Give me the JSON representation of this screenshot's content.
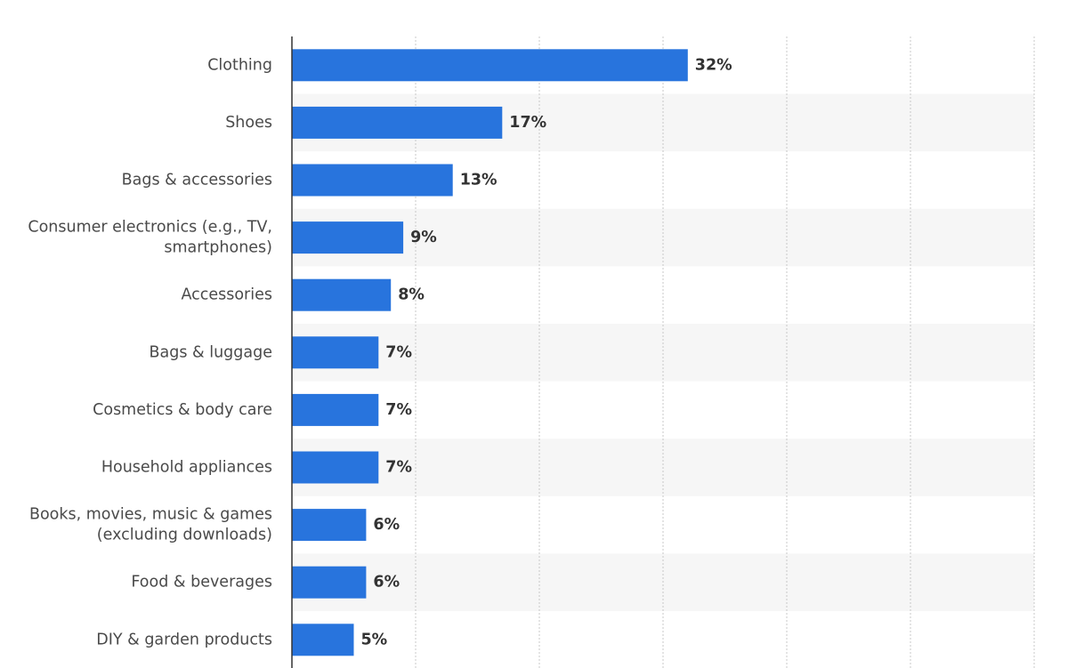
{
  "chart_data": {
    "type": "bar",
    "orientation": "horizontal",
    "categories": [
      [
        "Clothing"
      ],
      [
        "Shoes"
      ],
      [
        "Bags & accessories"
      ],
      [
        "Consumer electronics (e.g., TV,",
        "smartphones)"
      ],
      [
        "Accessories"
      ],
      [
        "Bags & luggage"
      ],
      [
        "Cosmetics & body care"
      ],
      [
        "Household appliances"
      ],
      [
        "Books, movies, music & games",
        "(excluding downloads)"
      ],
      [
        "Food & beverages"
      ],
      [
        "DIY & garden products"
      ]
    ],
    "values": [
      32,
      17,
      13,
      9,
      8,
      7,
      7,
      7,
      6,
      6,
      5
    ],
    "value_labels": [
      "32%",
      "17%",
      "13%",
      "9%",
      "8%",
      "7%",
      "7%",
      "7%",
      "6%",
      "6%",
      "5%"
    ],
    "xlim": [
      0,
      60
    ],
    "grid": true,
    "alternating_row_bands": true,
    "colors": {
      "bar": "#2874dd",
      "band": "#f6f6f6",
      "grid": "#c8c8c8",
      "axis": "#333333",
      "category_text": "#4a4a4a",
      "value_text": "#333333"
    }
  }
}
